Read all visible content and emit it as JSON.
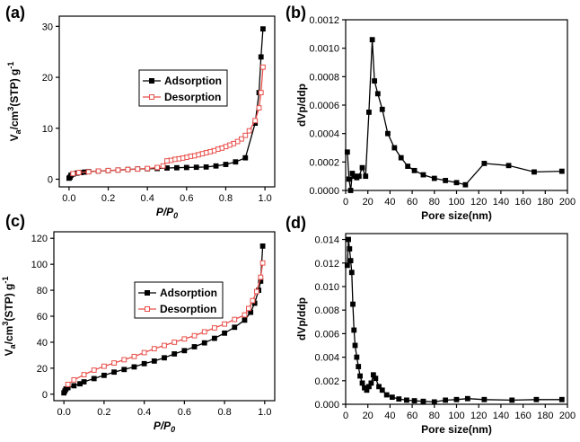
{
  "chart_data": [
    {
      "id": "a",
      "type": "line",
      "panel_label": "(a)",
      "xlabel": "P/P",
      "xlabel_sub": "0",
      "ylabel": "V",
      "ylabel_sub": "a",
      "ylabel_rest": "/cm",
      "ylabel_sup": "3",
      "ylabel_tail": "(STP) g",
      "ylabel_sup2": "-1",
      "xlim": [
        -0.05,
        1.05
      ],
      "ylim": [
        -1.5,
        32
      ],
      "xticks": [
        "0.0",
        "0.2",
        "0.4",
        "0.6",
        "0.8",
        "1.0"
      ],
      "yticks": [
        "0",
        "10",
        "20",
        "30"
      ],
      "legend_position": "top-right",
      "series": [
        {
          "name": "Adsorption",
          "color": "#000000",
          "marker": "filled-square",
          "x": [
            0.0,
            0.005,
            0.01,
            0.02,
            0.04,
            0.06,
            0.08,
            0.1,
            0.15,
            0.2,
            0.25,
            0.3,
            0.35,
            0.4,
            0.45,
            0.5,
            0.55,
            0.6,
            0.65,
            0.7,
            0.75,
            0.8,
            0.85,
            0.9,
            0.95,
            0.97,
            0.98,
            0.99
          ],
          "y": [
            0.2,
            0.4,
            0.8,
            1.0,
            1.2,
            1.3,
            1.4,
            1.5,
            1.6,
            1.7,
            1.8,
            1.9,
            2.0,
            2.05,
            2.1,
            2.2,
            2.25,
            2.3,
            2.35,
            2.4,
            2.6,
            2.9,
            3.4,
            4.2,
            11.0,
            17.0,
            24.0,
            29.5
          ]
        },
        {
          "name": "Desorption",
          "color": "#e8504b",
          "marker": "open-square",
          "x": [
            0.99,
            0.98,
            0.97,
            0.95,
            0.92,
            0.9,
            0.88,
            0.86,
            0.84,
            0.82,
            0.8,
            0.78,
            0.76,
            0.74,
            0.72,
            0.7,
            0.68,
            0.66,
            0.64,
            0.62,
            0.6,
            0.58,
            0.56,
            0.54,
            0.52,
            0.5,
            0.48,
            0.45,
            0.4,
            0.35,
            0.3,
            0.25,
            0.2,
            0.15,
            0.1,
            0.05,
            0.02
          ],
          "y": [
            22.0,
            17.0,
            14.0,
            11.5,
            9.5,
            8.6,
            7.9,
            7.4,
            7.0,
            6.7,
            6.4,
            6.1,
            5.9,
            5.6,
            5.4,
            5.2,
            5.0,
            4.8,
            4.6,
            4.5,
            4.3,
            4.15,
            4.0,
            3.9,
            3.7,
            3.6,
            2.6,
            2.3,
            2.1,
            2.0,
            1.9,
            1.8,
            1.7,
            1.6,
            1.45,
            1.3,
            1.1
          ]
        }
      ]
    },
    {
      "id": "b",
      "type": "line",
      "panel_label": "(b)",
      "xlabel": "Pore size(nm)",
      "ylabel": "dVp/ddp",
      "xlim": [
        0,
        200
      ],
      "ylim": [
        0,
        0.0012
      ],
      "xticks": [
        "0",
        "20",
        "40",
        "60",
        "80",
        "100",
        "120",
        "140",
        "160",
        "180",
        "200"
      ],
      "yticks": [
        "0.0000",
        "0.0002",
        "0.0004",
        "0.0006",
        "0.0008",
        "0.0010",
        "0.0012"
      ],
      "series": [
        {
          "name": "",
          "color": "#000000",
          "marker": "filled-square",
          "x": [
            1.5,
            3,
            4.5,
            6,
            8,
            10,
            12,
            15,
            18,
            21,
            24,
            26,
            29,
            33,
            38,
            44,
            50,
            56,
            62,
            70,
            80,
            90,
            100,
            108,
            125,
            147,
            170,
            195
          ],
          "y": [
            0.00027,
            8e-05,
            0.0,
            0.00012,
            0.0001,
            9e-05,
            0.0001,
            0.00016,
            0.0001,
            0.00055,
            0.00106,
            0.00077,
            0.00068,
            0.00057,
            0.0004,
            0.0003,
            0.00023,
            0.00017,
            0.00014,
            0.00011,
            8.5e-05,
            7e-05,
            5.5e-05,
            4e-05,
            0.00019,
            0.000175,
            0.00013,
            0.000135
          ]
        }
      ]
    },
    {
      "id": "c",
      "type": "line",
      "panel_label": "(c)",
      "xlabel": "P/P",
      "xlabel_sub": "0",
      "ylabel": "V",
      "ylabel_sub": "a",
      "ylabel_rest": "/cm",
      "ylabel_sup": "3",
      "ylabel_tail": "(STP) g",
      "ylabel_sup2": "-1",
      "xlim": [
        -0.05,
        1.05
      ],
      "ylim": [
        -5,
        125
      ],
      "xticks": [
        "0.0",
        "0.2",
        "0.4",
        "0.6",
        "0.8",
        "1.0"
      ],
      "yticks": [
        "0",
        "20",
        "40",
        "60",
        "80",
        "100",
        "120"
      ],
      "legend_position": "top-center",
      "series": [
        {
          "name": "Adsorption",
          "color": "#000000",
          "marker": "filled-square",
          "x": [
            0.0,
            0.005,
            0.01,
            0.02,
            0.05,
            0.08,
            0.1,
            0.15,
            0.2,
            0.25,
            0.3,
            0.35,
            0.4,
            0.45,
            0.5,
            0.55,
            0.6,
            0.65,
            0.7,
            0.75,
            0.8,
            0.85,
            0.9,
            0.93,
            0.95,
            0.97,
            0.98,
            0.99
          ],
          "y": [
            1.0,
            2.5,
            4.0,
            5.0,
            6.5,
            8.0,
            9.5,
            12.0,
            14.5,
            17.0,
            19.0,
            21.0,
            23.5,
            25.5,
            28.0,
            31.0,
            33.5,
            36.5,
            39.5,
            43.0,
            47.0,
            51.5,
            57.0,
            63.0,
            70.0,
            80.0,
            87.0,
            114.0
          ]
        },
        {
          "name": "Desorption",
          "color": "#e8504b",
          "marker": "open-square",
          "x": [
            0.99,
            0.98,
            0.96,
            0.94,
            0.92,
            0.9,
            0.85,
            0.8,
            0.75,
            0.7,
            0.65,
            0.6,
            0.55,
            0.5,
            0.45,
            0.4,
            0.35,
            0.3,
            0.25,
            0.2,
            0.15,
            0.1,
            0.05,
            0.02
          ],
          "y": [
            101.0,
            90.0,
            79.0,
            72.0,
            66.0,
            61.0,
            57.5,
            54.0,
            51.0,
            48.0,
            45.0,
            42.5,
            40.0,
            37.5,
            35.0,
            32.0,
            29.0,
            26.5,
            24.0,
            21.5,
            18.5,
            15.0,
            11.0,
            7.5
          ]
        }
      ]
    },
    {
      "id": "d",
      "type": "line",
      "panel_label": "(d)",
      "xlabel": "Pore size(nm)",
      "ylabel": "dVp/ddp",
      "xlim": [
        0,
        200
      ],
      "ylim": [
        0,
        0.0145
      ],
      "xticks": [
        "0",
        "20",
        "40",
        "60",
        "80",
        "100",
        "120",
        "140",
        "160",
        "180",
        "200"
      ],
      "yticks": [
        "0.000",
        "0.002",
        "0.004",
        "0.006",
        "0.008",
        "0.010",
        "0.012",
        "0.014"
      ],
      "series": [
        {
          "name": "",
          "color": "#000000",
          "marker": "filled-square",
          "x": [
            1.5,
            2.5,
            3.5,
            4.5,
            5.5,
            6.5,
            7.5,
            8.5,
            10,
            11.5,
            13,
            15,
            17,
            19,
            21,
            23,
            25,
            27,
            30,
            33,
            37,
            42,
            48,
            55,
            62,
            70,
            80,
            90,
            100,
            110,
            125,
            150,
            172,
            195
          ],
          "y": [
            0.0118,
            0.014,
            0.0132,
            0.0122,
            0.0112,
            0.0085,
            0.0063,
            0.005,
            0.004,
            0.0032,
            0.0024,
            0.0018,
            0.0014,
            0.0012,
            0.0015,
            0.0018,
            0.0025,
            0.0022,
            0.0015,
            0.0012,
            0.0008,
            0.0006,
            0.00045,
            0.00035,
            0.0003,
            0.00025,
            0.0002,
            0.00035,
            0.0004,
            0.00048,
            0.0004,
            0.00035,
            0.0004,
            0.0004
          ]
        }
      ]
    }
  ]
}
